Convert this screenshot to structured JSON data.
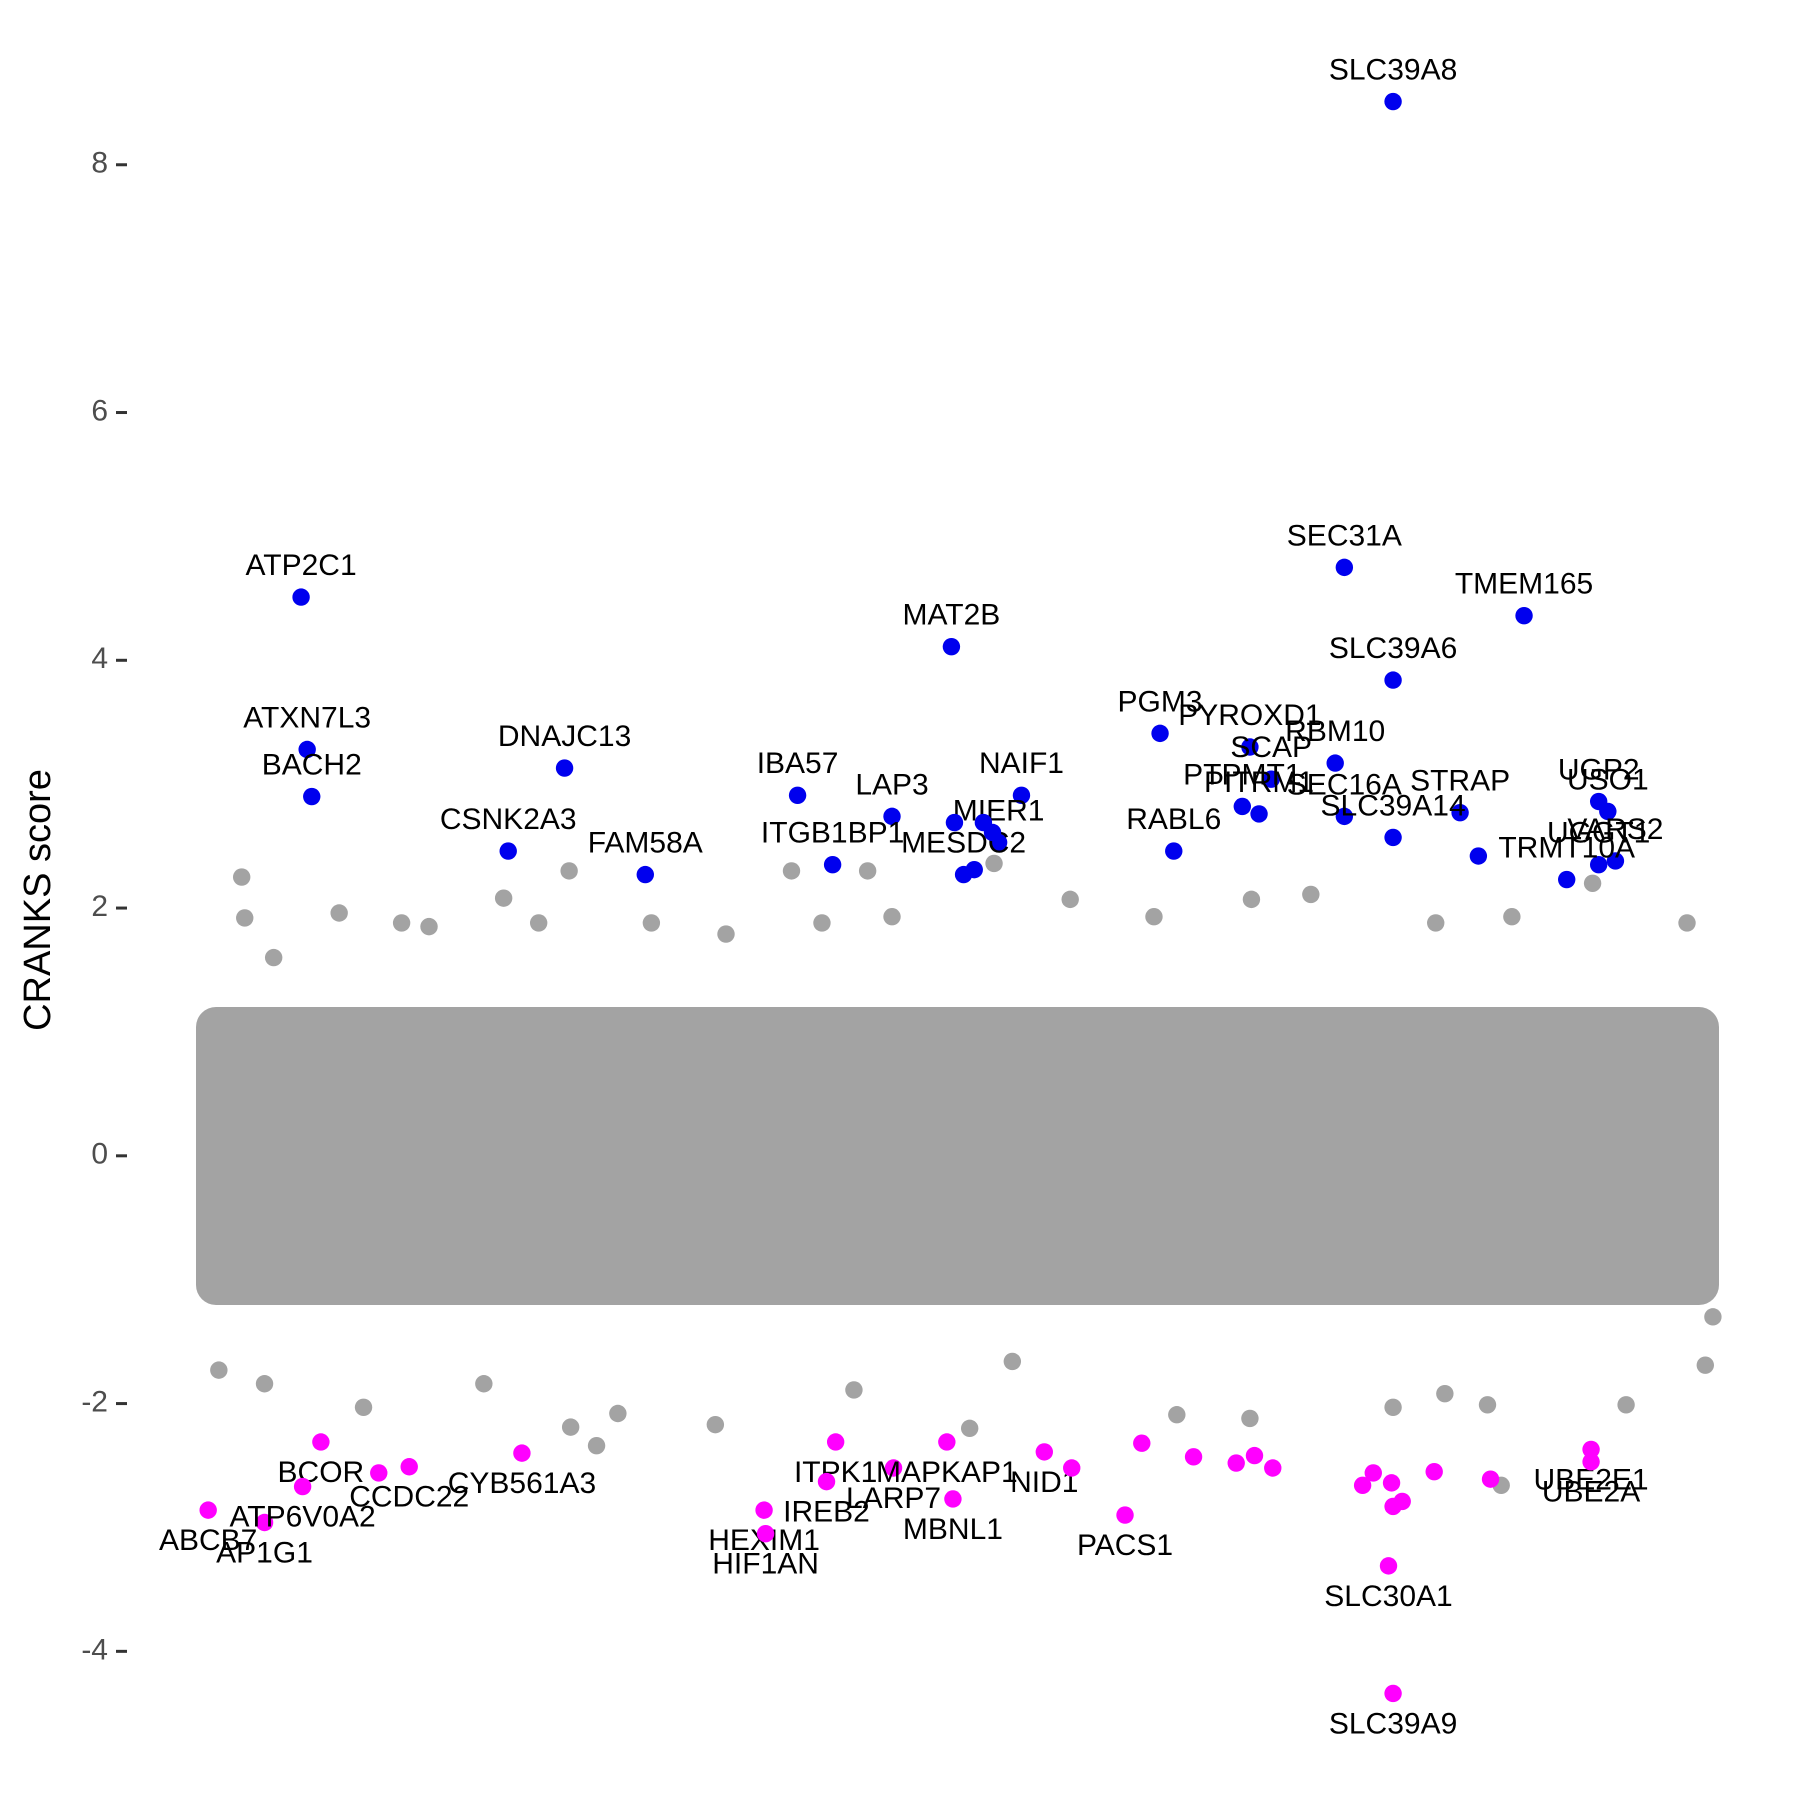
{
  "chart_data": {
    "type": "scatter",
    "y_label": "CRANKS score",
    "xlim": [
      0,
      100
    ],
    "ylim": [
      -5.2,
      9.33
    ],
    "yticks": [
      -4,
      -2,
      0,
      2,
      4,
      6,
      8
    ],
    "series": [
      {
        "color": "#a3a3a3",
        "x": [
          3.0,
          3.2,
          5.1,
          9.4,
          13.5,
          15.3,
          20.2,
          24.5,
          22.5,
          29.9,
          34.8,
          39.1,
          41.1,
          44.1,
          45.7,
          52.4,
          57.4,
          62.9,
          69.3,
          73.2,
          81.4,
          86.4,
          91.7,
          97.9,
          1.5,
          4.5,
          11.0,
          18.9,
          24.6,
          26.3,
          27.7,
          34.1,
          43.2,
          50.8,
          53.6,
          64.4,
          69.2,
          78.6,
          82.0,
          84.8,
          85.7,
          93.9,
          99.1,
          99.6
        ],
        "values": [
          2.25,
          1.92,
          1.6,
          1.96,
          1.88,
          1.85,
          2.08,
          2.3,
          1.88,
          1.88,
          1.79,
          2.3,
          1.88,
          2.3,
          1.93,
          2.36,
          2.07,
          1.93,
          2.07,
          2.11,
          1.88,
          1.93,
          2.2,
          1.88,
          -1.73,
          -1.84,
          -2.03,
          -1.84,
          -2.19,
          -2.34,
          -2.08,
          -2.17,
          -1.89,
          -2.2,
          -1.66,
          -2.09,
          -2.12,
          -2.03,
          -1.92,
          -2.01,
          -2.66,
          -2.01,
          -1.69,
          -1.3
        ]
      },
      {
        "color": "#0000ee",
        "x": [
          78.6,
          75.4,
          87.2,
          6.9,
          49.6,
          78.6,
          63.3,
          7.3,
          69.2,
          24.2,
          70.6,
          75.4,
          74.8,
          68.7,
          64.2,
          69.8,
          7.6,
          39.5,
          54.2,
          45.7,
          20.5,
          29.5,
          41.8,
          52.7,
          50.4,
          49.8,
          51.7,
          52.3,
          51.1,
          83.0,
          92.1,
          92.7,
          78.6,
          84.2,
          93.2,
          92.1,
          90.0
        ],
        "values": [
          8.51,
          4.75,
          4.36,
          4.51,
          4.11,
          3.84,
          3.41,
          3.28,
          3.3,
          3.13,
          3.04,
          2.74,
          3.17,
          2.82,
          2.46,
          2.76,
          2.9,
          2.91,
          2.91,
          2.74,
          2.46,
          2.27,
          2.35,
          2.53,
          2.27,
          2.69,
          2.69,
          2.61,
          2.31,
          2.77,
          2.86,
          2.78,
          2.57,
          2.42,
          2.38,
          2.35,
          2.23
        ],
        "labels": [
          "SLC39A8",
          "SEC31A",
          "TMEM165",
          "ATP2C1",
          "MAT2B",
          "SLC39A6",
          "PGM3",
          "ATXN7L3",
          "PYROXD1",
          "DNAJC13",
          "SCAP",
          "SEC16A",
          "RBM10",
          "PTPMT1",
          "RABL6",
          "PITRM1",
          "BACH2",
          "IBA57",
          "NAIF1",
          "LAP3",
          "CSNK2A3",
          "FAM58A",
          "ITGB1BP1",
          "MIER1",
          "MESDC2",
          null,
          null,
          null,
          null,
          "STRAP",
          "UGP2",
          "USO1",
          "SLC39A14",
          null,
          "VARS2",
          "UGGT1",
          "TRMT10A"
        ]
      },
      {
        "color": "#ff00ff",
        "x": [
          78.6,
          78.3,
          0.8,
          4.5,
          8.2,
          7.0,
          14.0,
          12.0,
          21.4,
          42.0,
          37.3,
          37.4,
          41.4,
          45.8,
          49.3,
          49.7,
          55.7,
          57.5,
          62.1,
          61.0,
          65.5,
          68.3,
          69.5,
          70.7,
          76.6,
          77.3,
          78.5,
          78.6,
          79.2,
          81.3,
          85.0,
          91.6,
          91.6
        ],
        "values": [
          -4.34,
          -3.31,
          -2.86,
          -2.96,
          -2.31,
          -2.67,
          -2.51,
          -2.56,
          -2.4,
          -2.31,
          -2.86,
          -3.05,
          -2.63,
          -2.52,
          -2.31,
          -2.77,
          -2.39,
          -2.52,
          -2.32,
          -2.9,
          -2.43,
          -2.48,
          -2.42,
          -2.52,
          -2.66,
          -2.56,
          -2.64,
          -2.83,
          -2.79,
          -2.55,
          -2.61,
          -2.37,
          -2.47
        ],
        "labels": [
          "SLC39A9",
          "SLC30A1",
          "ABCB7",
          "AP1G1",
          "BCOR",
          "ATP6V0A2",
          "CCDC22",
          null,
          "CYB561A3",
          "ITPK1",
          "HEXIM1",
          "HIF1AN",
          "IREB2",
          "LARP7",
          "MAPKAP1",
          "MBNL1",
          "NID1",
          null,
          null,
          "PACS1",
          null,
          null,
          null,
          null,
          null,
          null,
          null,
          null,
          null,
          null,
          null,
          "UBE2E1",
          "UBE2A"
        ]
      }
    ]
  }
}
